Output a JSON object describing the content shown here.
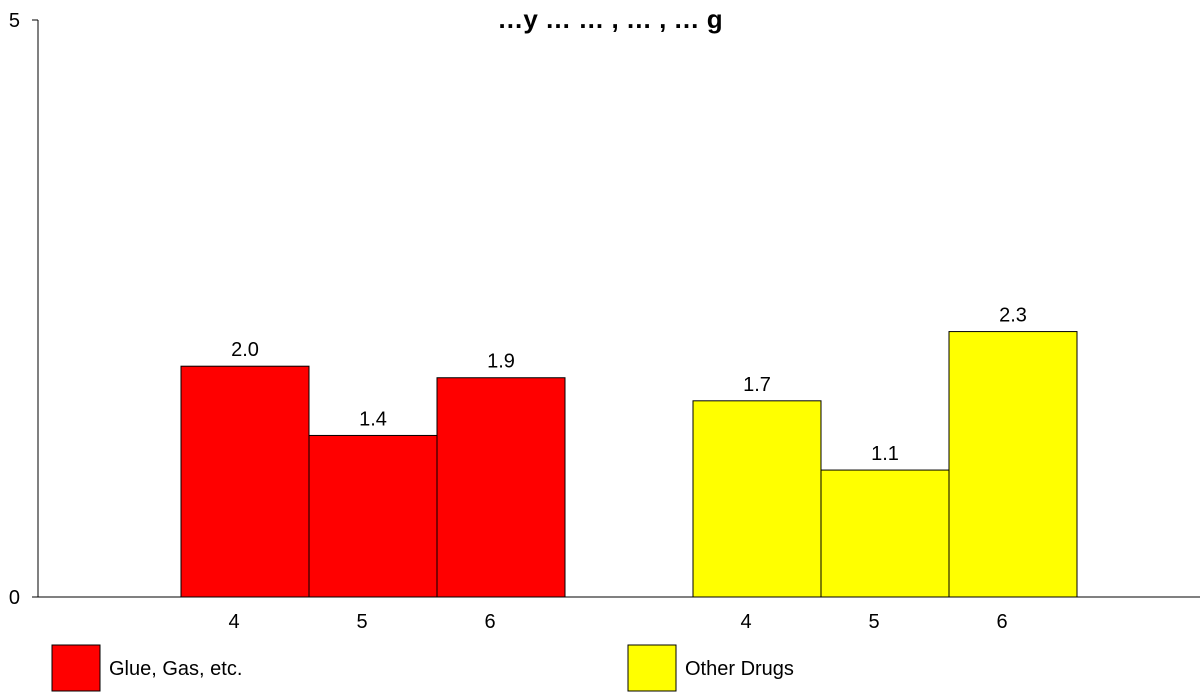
{
  "chart_data": {
    "type": "bar",
    "title": "…y … … , … , … g",
    "xlabel": "",
    "ylabel": "",
    "ylim": [
      0,
      5
    ],
    "yticks": [
      "0",
      "5"
    ],
    "grid": false,
    "legend_position": "bottom",
    "groups": [
      {
        "name": "Glue, Gas, etc.",
        "color": "#ff0000",
        "categories": [
          "4",
          "5",
          "6"
        ],
        "values": [
          2.0,
          1.4,
          1.9
        ],
        "labels": [
          "2.0",
          "1.4",
          "1.9"
        ]
      },
      {
        "name": "Other Drugs",
        "color": "#ffff00",
        "categories": [
          "4",
          "5",
          "6"
        ],
        "values": [
          1.7,
          1.1,
          2.3
        ],
        "labels": [
          "1.7",
          "1.1",
          "2.3"
        ]
      }
    ]
  }
}
